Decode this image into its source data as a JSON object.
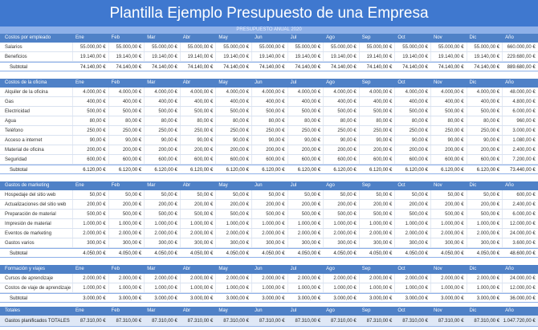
{
  "title": "Plantilla Ejemplo Presupuesto de una Empresa",
  "subtitle": "PRESUPUESTO ANUAL 2020",
  "columns": [
    "Ene",
    "Feb",
    "Mar",
    "Abr",
    "May",
    "Jun",
    "Jul",
    "Ago",
    "Sep",
    "Oct",
    "Nov",
    "Dic",
    "Año"
  ],
  "sections": [
    {
      "title": "Costos por empleado",
      "rows": [
        {
          "label": "Salarios",
          "values": [
            "55.000,00 €",
            "55.000,00 €",
            "55.000,00 €",
            "55.000,00 €",
            "55.000,00 €",
            "55.000,00 €",
            "55.000,00 €",
            "55.000,00 €",
            "55.000,00 €",
            "55.000,00 €",
            "55.000,00 €",
            "55.000,00 €",
            "660.000,00 €"
          ]
        },
        {
          "label": "Beneficios",
          "values": [
            "19.140,00 €",
            "19.140,00 €",
            "19.140,00 €",
            "19.140,00 €",
            "19.140,00 €",
            "19.140,00 €",
            "19.140,00 €",
            "19.140,00 €",
            "19.140,00 €",
            "19.140,00 €",
            "19.140,00 €",
            "19.140,00 €",
            "229.680,00 €"
          ]
        }
      ],
      "subtotal": {
        "label": "Subtotal",
        "values": [
          "74.140,00 €",
          "74.140,00 €",
          "74.140,00 €",
          "74.140,00 €",
          "74.140,00 €",
          "74.140,00 €",
          "74.140,00 €",
          "74.140,00 €",
          "74.140,00 €",
          "74.140,00 €",
          "74.140,00 €",
          "74.140,00 €",
          "889.680,00 €"
        ]
      }
    },
    {
      "title": "Costos de la oficina",
      "rows": [
        {
          "label": "Alquiler de la oficina",
          "values": [
            "4.000,00 €",
            "4.000,00 €",
            "4.000,00 €",
            "4.000,00 €",
            "4.000,00 €",
            "4.000,00 €",
            "4.000,00 €",
            "4.000,00 €",
            "4.000,00 €",
            "4.000,00 €",
            "4.000,00 €",
            "4.000,00 €",
            "48.000,00 €"
          ]
        },
        {
          "label": "Gas",
          "values": [
            "400,00 €",
            "400,00 €",
            "400,00 €",
            "400,00 €",
            "400,00 €",
            "400,00 €",
            "400,00 €",
            "400,00 €",
            "400,00 €",
            "400,00 €",
            "400,00 €",
            "400,00 €",
            "4.800,00 €"
          ]
        },
        {
          "label": "Electricidad",
          "values": [
            "500,00 €",
            "500,00 €",
            "500,00 €",
            "500,00 €",
            "500,00 €",
            "500,00 €",
            "500,00 €",
            "500,00 €",
            "500,00 €",
            "500,00 €",
            "500,00 €",
            "500,00 €",
            "6.000,00 €"
          ]
        },
        {
          "label": "Agua",
          "values": [
            "80,00 €",
            "80,00 €",
            "80,00 €",
            "80,00 €",
            "80,00 €",
            "80,00 €",
            "80,00 €",
            "80,00 €",
            "80,00 €",
            "80,00 €",
            "80,00 €",
            "80,00 €",
            "960,00 €"
          ]
        },
        {
          "label": "Teléfono",
          "values": [
            "250,00 €",
            "250,00 €",
            "250,00 €",
            "250,00 €",
            "250,00 €",
            "250,00 €",
            "250,00 €",
            "250,00 €",
            "250,00 €",
            "250,00 €",
            "250,00 €",
            "250,00 €",
            "3.000,00 €"
          ]
        },
        {
          "label": "Acceso a internet",
          "values": [
            "90,00 €",
            "90,00 €",
            "90,00 €",
            "90,00 €",
            "90,00 €",
            "90,00 €",
            "90,00 €",
            "90,00 €",
            "90,00 €",
            "90,00 €",
            "90,00 €",
            "90,00 €",
            "1.080,00 €"
          ]
        },
        {
          "label": "Material de oficina",
          "values": [
            "200,00 €",
            "200,00 €",
            "200,00 €",
            "200,00 €",
            "200,00 €",
            "200,00 €",
            "200,00 €",
            "200,00 €",
            "200,00 €",
            "200,00 €",
            "200,00 €",
            "200,00 €",
            "2.400,00 €"
          ]
        },
        {
          "label": "Seguridad",
          "values": [
            "600,00 €",
            "600,00 €",
            "600,00 €",
            "600,00 €",
            "600,00 €",
            "600,00 €",
            "600,00 €",
            "600,00 €",
            "600,00 €",
            "600,00 €",
            "600,00 €",
            "600,00 €",
            "7.200,00 €"
          ]
        }
      ],
      "subtotal": {
        "label": "Subtotal",
        "values": [
          "6.120,00 €",
          "6.120,00 €",
          "6.120,00 €",
          "6.120,00 €",
          "6.120,00 €",
          "6.120,00 €",
          "6.120,00 €",
          "6.120,00 €",
          "6.120,00 €",
          "6.120,00 €",
          "6.120,00 €",
          "6.120,00 €",
          "73.440,00 €"
        ]
      }
    },
    {
      "title": "Gastos de marketing",
      "rows": [
        {
          "label": "Hospedaje del sitio web",
          "values": [
            "50,00 €",
            "50,00 €",
            "50,00 €",
            "50,00 €",
            "50,00 €",
            "50,00 €",
            "50,00 €",
            "50,00 €",
            "50,00 €",
            "50,00 €",
            "50,00 €",
            "50,00 €",
            "600,00 €"
          ]
        },
        {
          "label": "Actualizaciones del sitio web",
          "values": [
            "200,00 €",
            "200,00 €",
            "200,00 €",
            "200,00 €",
            "200,00 €",
            "200,00 €",
            "200,00 €",
            "200,00 €",
            "200,00 €",
            "200,00 €",
            "200,00 €",
            "200,00 €",
            "2.400,00 €"
          ]
        },
        {
          "label": "Preparación de material",
          "values": [
            "500,00 €",
            "500,00 €",
            "500,00 €",
            "500,00 €",
            "500,00 €",
            "500,00 €",
            "500,00 €",
            "500,00 €",
            "500,00 €",
            "500,00 €",
            "500,00 €",
            "500,00 €",
            "6.000,00 €"
          ]
        },
        {
          "label": "Impresión de material",
          "values": [
            "1.000,00 €",
            "1.000,00 €",
            "1.000,00 €",
            "1.000,00 €",
            "1.000,00 €",
            "1.000,00 €",
            "1.000,00 €",
            "1.000,00 €",
            "1.000,00 €",
            "1.000,00 €",
            "1.000,00 €",
            "1.000,00 €",
            "12.000,00 €"
          ]
        },
        {
          "label": "Eventos de marketing",
          "values": [
            "2.000,00 €",
            "2.000,00 €",
            "2.000,00 €",
            "2.000,00 €",
            "2.000,00 €",
            "2.000,00 €",
            "2.000,00 €",
            "2.000,00 €",
            "2.000,00 €",
            "2.000,00 €",
            "2.000,00 €",
            "2.000,00 €",
            "24.000,00 €"
          ]
        },
        {
          "label": "Gastos varios",
          "values": [
            "300,00 €",
            "300,00 €",
            "300,00 €",
            "300,00 €",
            "300,00 €",
            "300,00 €",
            "300,00 €",
            "300,00 €",
            "300,00 €",
            "300,00 €",
            "300,00 €",
            "300,00 €",
            "3.600,00 €"
          ]
        }
      ],
      "subtotal": {
        "label": "Subtotal",
        "values": [
          "4.050,00 €",
          "4.050,00 €",
          "4.050,00 €",
          "4.050,00 €",
          "4.050,00 €",
          "4.050,00 €",
          "4.050,00 €",
          "4.050,00 €",
          "4.050,00 €",
          "4.050,00 €",
          "4.050,00 €",
          "4.050,00 €",
          "48.600,00 €"
        ]
      }
    },
    {
      "title": "Formación y viajes",
      "rows": [
        {
          "label": "Cursos de aprendizaje",
          "values": [
            "2.000,00 €",
            "2.000,00 €",
            "2.000,00 €",
            "2.000,00 €",
            "2.000,00 €",
            "2.000,00 €",
            "2.000,00 €",
            "2.000,00 €",
            "2.000,00 €",
            "2.000,00 €",
            "2.000,00 €",
            "2.000,00 €",
            "24.000,00 €"
          ]
        },
        {
          "label": "Costos de viaje de aprendizaje",
          "values": [
            "1.000,00 €",
            "1.000,00 €",
            "1.000,00 €",
            "1.000,00 €",
            "1.000,00 €",
            "1.000,00 €",
            "1.000,00 €",
            "1.000,00 €",
            "1.000,00 €",
            "1.000,00 €",
            "1.000,00 €",
            "1.000,00 €",
            "12.000,00 €"
          ]
        }
      ],
      "subtotal": {
        "label": "Subtotal",
        "values": [
          "3.000,00 €",
          "3.000,00 €",
          "3.000,00 €",
          "3.000,00 €",
          "3.000,00 €",
          "3.000,00 €",
          "3.000,00 €",
          "3.000,00 €",
          "3.000,00 €",
          "3.000,00 €",
          "3.000,00 €",
          "3.000,00 €",
          "36.000,00 €"
        ]
      }
    }
  ],
  "totals": {
    "title": "Totales",
    "label": "Gastos planificados TOTALES",
    "values": [
      "87.310,00 €",
      "87.310,00 €",
      "87.310,00 €",
      "87.310,00 €",
      "87.310,00 €",
      "87.310,00 €",
      "87.310,00 €",
      "87.310,00 €",
      "87.310,00 €",
      "87.310,00 €",
      "87.310,00 €",
      "87.310,00 €",
      "1.047.720,00 €"
    ]
  }
}
